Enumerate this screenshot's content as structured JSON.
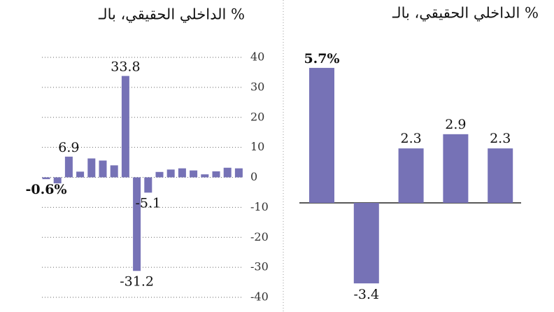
{
  "chart_data": [
    {
      "type": "bar",
      "title": "الداخلي الحقيقي، بالـ %",
      "values": [
        -0.6,
        -2.0,
        6.9,
        1.9,
        6.3,
        5.6,
        4.0,
        33.8,
        -31.2,
        -5.1,
        1.8,
        2.6,
        3.0,
        2.3,
        1.0,
        2.0,
        3.2,
        3.0
      ],
      "value_labels": [
        "-0.6%",
        null,
        "6.9",
        null,
        null,
        null,
        null,
        "33.8",
        "-31.2",
        "-5.1",
        null,
        null,
        null,
        null,
        null,
        null,
        null,
        null
      ],
      "color": "#7672b6",
      "ylim": [
        -40,
        40
      ],
      "yticks": [
        40,
        30,
        20,
        10,
        0,
        -10,
        -20,
        -30,
        -40
      ],
      "grid": true
    },
    {
      "type": "bar",
      "title": "الداخلي الحقيقي، بالـ %",
      "values": [
        5.7,
        -3.4,
        2.3,
        2.9,
        2.3
      ],
      "value_labels": [
        "5.7%",
        null,
        null,
        null,
        null
      ],
      "color": "#7672b6"
    }
  ]
}
